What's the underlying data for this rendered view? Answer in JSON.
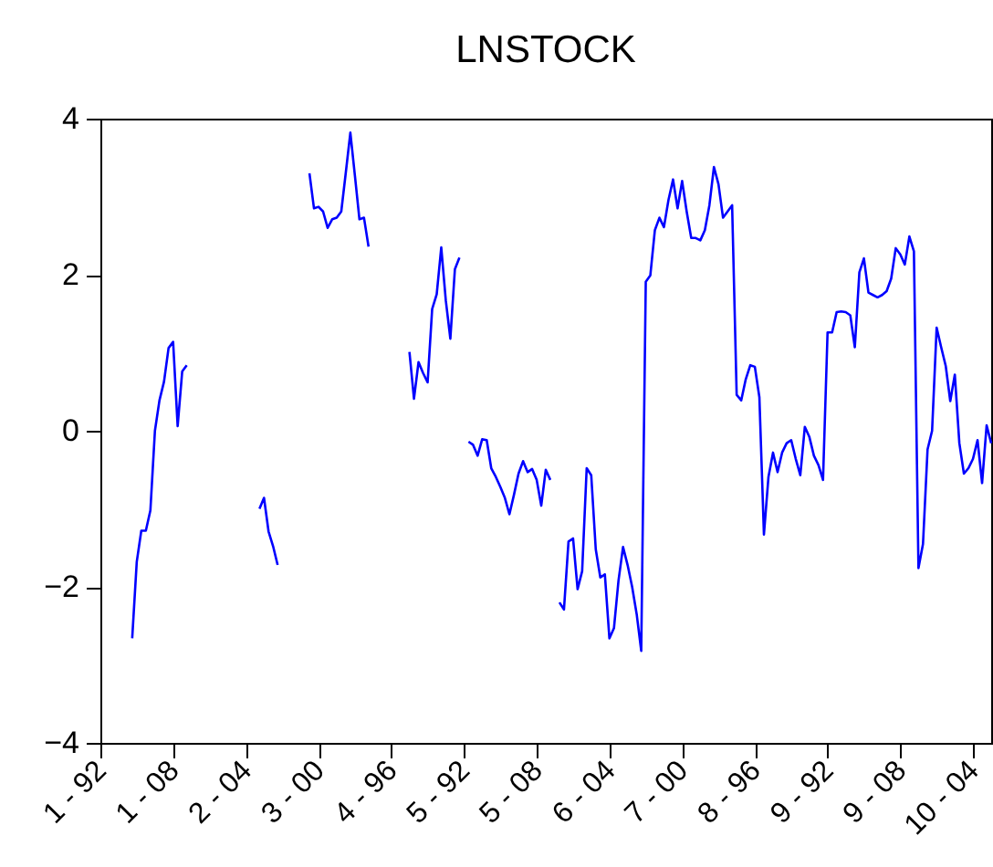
{
  "chart_data": {
    "type": "line",
    "title": "LNSTOCK",
    "categories": [
      "1 - 92",
      null,
      null,
      null,
      null,
      null,
      null,
      null,
      null,
      null,
      null,
      null,
      null,
      null,
      null,
      null,
      "1 - 08",
      null,
      null,
      null,
      null,
      null,
      null,
      null,
      null,
      null,
      null,
      null,
      null,
      null,
      null,
      null,
      "2 - 04",
      null,
      null,
      null,
      null,
      null,
      null,
      null,
      null,
      null,
      null,
      null,
      null,
      null,
      null,
      null,
      "3 - 00",
      null,
      null,
      null,
      null,
      null,
      null,
      null,
      null,
      null,
      null,
      null,
      null,
      null,
      null,
      null,
      "4 - 96",
      null,
      null,
      null,
      null,
      null,
      null,
      null,
      null,
      null,
      null,
      null,
      null,
      null,
      null,
      null,
      "5 - 92",
      null,
      null,
      null,
      null,
      null,
      null,
      null,
      null,
      null,
      null,
      null,
      null,
      null,
      null,
      null,
      "5 - 08",
      null,
      null,
      null,
      null,
      null,
      null,
      null,
      null,
      null,
      null,
      null,
      null,
      null,
      null,
      null,
      "6 - 04",
      null,
      null,
      null,
      null,
      null,
      null,
      null,
      null,
      null,
      null,
      null,
      null,
      null,
      null,
      null,
      "7 - 00",
      null,
      null,
      null,
      null,
      null,
      null,
      null,
      null,
      null,
      null,
      null,
      null,
      null,
      null,
      null,
      "8 - 96",
      null,
      null,
      null,
      null,
      null,
      null,
      null,
      null,
      null,
      null,
      null,
      null,
      null,
      null,
      null,
      "9 - 92",
      null,
      null,
      null,
      null,
      null,
      null,
      null,
      null,
      null,
      null,
      null,
      null,
      null,
      null,
      null,
      "9 - 08",
      null,
      null,
      null,
      null,
      null,
      null,
      null,
      null,
      null,
      null,
      null,
      null,
      null,
      null,
      null,
      "10 - 04",
      null,
      null,
      null,
      null
    ],
    "series": [
      {
        "color": "#0000ff",
        "values": [
          null,
          null,
          null,
          null,
          null,
          null,
          null,
          -2.66,
          -1.68,
          -1.28,
          -1.28,
          -1.02,
          0.0,
          0.39,
          0.63,
          1.06,
          1.14,
          0.06,
          0.76,
          0.84,
          null,
          null,
          null,
          null,
          null,
          null,
          null,
          null,
          null,
          null,
          null,
          null,
          null,
          null,
          null,
          -1.0,
          -0.86,
          -1.29,
          -1.48,
          -1.72,
          null,
          null,
          null,
          null,
          null,
          null,
          3.3,
          2.85,
          2.87,
          2.81,
          2.6,
          2.71,
          2.73,
          2.81,
          3.31,
          3.82,
          3.27,
          2.71,
          2.73,
          2.36,
          null,
          null,
          null,
          null,
          null,
          null,
          null,
          null,
          1.01,
          0.41,
          0.88,
          0.74,
          0.62,
          1.56,
          1.75,
          2.35,
          1.67,
          1.18,
          2.07,
          2.22,
          null,
          -0.14,
          -0.18,
          -0.32,
          -0.11,
          -0.12,
          -0.48,
          -0.59,
          -0.72,
          -0.86,
          -1.07,
          -0.82,
          -0.55,
          -0.39,
          -0.53,
          -0.49,
          -0.63,
          -0.96,
          -0.5,
          -0.63,
          null,
          -2.2,
          -2.29,
          -1.42,
          -1.38,
          -2.03,
          -1.8,
          -0.48,
          -0.57,
          -1.52,
          -1.88,
          -1.84,
          -2.66,
          -2.53,
          -1.92,
          -1.49,
          -1.72,
          -2.0,
          -2.35,
          -2.82,
          1.91,
          1.99,
          2.57,
          2.73,
          2.61,
          2.96,
          3.22,
          2.85,
          3.2,
          2.81,
          2.47,
          2.47,
          2.44,
          2.57,
          2.89,
          3.38,
          3.16,
          2.73,
          2.81,
          2.89,
          0.46,
          0.39,
          0.66,
          0.84,
          0.82,
          0.43,
          -1.33,
          -0.59,
          -0.28,
          -0.53,
          -0.28,
          -0.16,
          -0.12,
          -0.36,
          -0.57,
          0.05,
          -0.08,
          -0.32,
          -0.44,
          -0.63,
          1.26,
          1.26,
          1.52,
          1.53,
          1.52,
          1.48,
          1.07,
          2.03,
          2.21,
          1.77,
          1.74,
          1.71,
          1.74,
          1.79,
          1.95,
          2.34,
          2.26,
          2.13,
          2.49,
          2.3,
          -1.76,
          -1.45,
          -0.24,
          0.0,
          1.32,
          1.07,
          0.83,
          0.38,
          0.72,
          -0.16,
          -0.55,
          -0.48,
          -0.36,
          -0.12,
          -0.67,
          0.07,
          -0.16
        ]
      }
    ],
    "ylim": [
      -4,
      4
    ],
    "yticks": [
      -4,
      -2,
      0,
      2,
      4
    ],
    "grid": false,
    "marker": "none",
    "line_style": "solid"
  }
}
